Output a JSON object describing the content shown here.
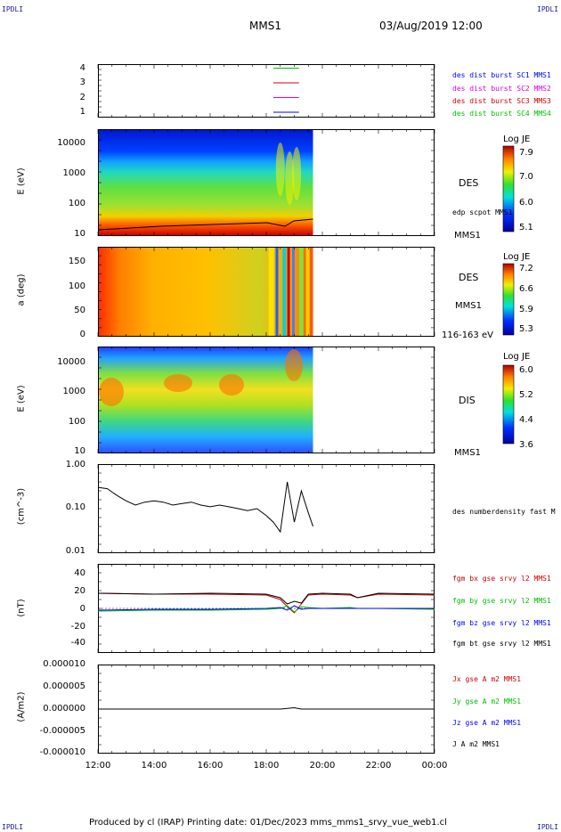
{
  "corners": {
    "tl": "IPDLI",
    "tr": "IPDLI",
    "bl": "IPDLI",
    "br": "IPDLI"
  },
  "header": {
    "title": "MMS1",
    "datetime": "03/Aug/2019 12:00"
  },
  "footer": {
    "text": "Produced by cl (IRAP)   Printing date: 01/Dec/2023   mms_mms1_srvy_vue_web1.cl"
  },
  "colors": {
    "blue": "#0000ff",
    "magenta": "#e000e0",
    "red": "#d00000",
    "green": "#00c000",
    "black": "#000000"
  },
  "chart_data": [
    {
      "type": "line",
      "id": "burst",
      "yticks": [
        "4",
        "3",
        "2",
        "1"
      ],
      "legend": [
        "des dist burst SC1 MMS1",
        "des dist burst SC2 MMS2",
        "des dist burst SC3 MMS3",
        "des dist burst SC4 MMS4"
      ],
      "legend_colors": [
        "#0000ff",
        "#e000e0",
        "#d00000",
        "#00c000"
      ],
      "series": [
        {
          "level": 4,
          "start": "18:15",
          "end": "19:10",
          "color": "#00c000"
        },
        {
          "level": 3,
          "start": "18:15",
          "end": "19:10",
          "color": "#d00000"
        },
        {
          "level": 2,
          "start": "18:15",
          "end": "19:10",
          "color": "#e000e0"
        },
        {
          "level": 1,
          "start": "18:15",
          "end": "19:10",
          "color": "#0000ff"
        }
      ]
    },
    {
      "type": "heatmap",
      "id": "des-energy",
      "ylabel": "E (eV)",
      "yscale": "log",
      "yticks": [
        "10000",
        "1000",
        "100",
        "10"
      ],
      "right_label": "DES",
      "secondary_label": "edp scpot MMS1",
      "bottom_label": "MMS1",
      "colorbar": {
        "title": "Log JE",
        "ticks": [
          "7.9",
          "7.0",
          "6.0",
          "5.1"
        ]
      },
      "data_end": "19:40"
    },
    {
      "type": "heatmap",
      "id": "des-pitch",
      "ylabel": "a (deg)",
      "yticks": [
        "150",
        "100",
        "50",
        "0"
      ],
      "right_label": "DES",
      "secondary_label": "MMS1",
      "bottom_label": "116-163 eV",
      "colorbar": {
        "title": "Log JE",
        "ticks": [
          "7.2",
          "6.6",
          "5.9",
          "5.3"
        ]
      },
      "data_end": "19:40"
    },
    {
      "type": "heatmap",
      "id": "dis-energy",
      "ylabel": "E (eV)",
      "yscale": "log",
      "yticks": [
        "10000",
        "1000",
        "100",
        "10"
      ],
      "right_label": "DIS",
      "bottom_label": "MMS1",
      "colorbar": {
        "title": "Log JE",
        "ticks": [
          "6.0",
          "5.2",
          "4.4",
          "3.6"
        ]
      },
      "data_end": "19:40"
    },
    {
      "type": "line",
      "id": "density",
      "ylabel": "(cm^-3)",
      "yscale": "log",
      "yticks": [
        "1.00",
        "0.10",
        "0.01"
      ],
      "legend": [
        "des numberdensity fast M"
      ],
      "x": [
        "12:00",
        "12:20",
        "12:40",
        "13:00",
        "13:20",
        "13:40",
        "14:00",
        "14:20",
        "14:40",
        "15:00",
        "15:20",
        "15:40",
        "16:00",
        "16:20",
        "16:40",
        "17:00",
        "17:20",
        "17:40",
        "18:00",
        "18:15",
        "18:30",
        "18:45",
        "19:00",
        "19:15",
        "19:30",
        "19:40"
      ],
      "y": [
        0.3,
        0.28,
        0.2,
        0.15,
        0.12,
        0.14,
        0.15,
        0.14,
        0.12,
        0.13,
        0.14,
        0.12,
        0.11,
        0.12,
        0.11,
        0.1,
        0.09,
        0.1,
        0.07,
        0.05,
        0.03,
        0.4,
        0.05,
        0.25,
        0.08,
        0.04
      ]
    },
    {
      "type": "line",
      "id": "magnetic",
      "ylabel": "(nT)",
      "yticks": [
        "40",
        "20",
        "0",
        "-20",
        "-40"
      ],
      "ylim": [
        -50,
        50
      ],
      "legend": [
        "fgm bx gse srvy l2 MMS1",
        "fgm by gse srvy l2 MMS1",
        "fgm bz gse srvy l2 MMS1",
        "fgm bt gse srvy l2 MMS1"
      ],
      "legend_colors": [
        "#d00000",
        "#00c000",
        "#0000ff",
        "#000000"
      ],
      "x": [
        "12:00",
        "14:00",
        "16:00",
        "18:00",
        "18:30",
        "18:45",
        "19:00",
        "19:15",
        "19:30",
        "20:00",
        "21:00",
        "21:15",
        "22:00",
        "00:00"
      ],
      "series": [
        {
          "name": "fgm bx gse srvy l2 MMS1",
          "color": "#d00000",
          "values": [
            17,
            16,
            16,
            15,
            10,
            2,
            -5,
            5,
            15,
            16,
            15,
            12,
            16,
            15
          ]
        },
        {
          "name": "fgm by gse srvy l2 MMS1",
          "color": "#00c000",
          "values": [
            -3,
            -2,
            -2,
            -1,
            0,
            3,
            -4,
            2,
            1,
            0,
            1,
            0,
            0,
            -1
          ]
        },
        {
          "name": "fgm bz gse srvy l2 MMS1",
          "color": "#0000ff",
          "values": [
            -2,
            -1,
            -1,
            0,
            1,
            -2,
            3,
            -1,
            0,
            0,
            0,
            0,
            0,
            0
          ]
        },
        {
          "name": "fgm bt gse srvy l2 MMS1",
          "color": "#000000",
          "values": [
            17,
            16,
            17,
            16,
            12,
            5,
            8,
            6,
            16,
            17,
            16,
            12,
            17,
            16
          ]
        }
      ]
    },
    {
      "type": "line",
      "id": "current",
      "ylabel": "(A/m2)",
      "yticks": [
        "0.000010",
        "0.000005",
        "0.000000",
        "-0.000005",
        "-0.000010"
      ],
      "ylim": [
        -1e-05,
        1e-05
      ],
      "legend": [
        "Jx gse A m2 MMS1",
        "Jy gse A m2 MMS1",
        "Jz gse A m2 MMS1",
        "J A m2 MMS1"
      ],
      "legend_colors": [
        "#d00000",
        "#00c000",
        "#0000ff",
        "#000000"
      ],
      "x": [
        "12:00",
        "18:30",
        "19:00",
        "19:15",
        "00:00"
      ],
      "series": [
        {
          "name": "J A m2 MMS1",
          "color": "#000000",
          "values": [
            0,
            0,
            3e-07,
            0,
            0
          ]
        }
      ]
    }
  ],
  "xaxis": {
    "ticks": [
      "12:00",
      "14:00",
      "16:00",
      "18:00",
      "20:00",
      "22:00",
      "00:00"
    ]
  }
}
